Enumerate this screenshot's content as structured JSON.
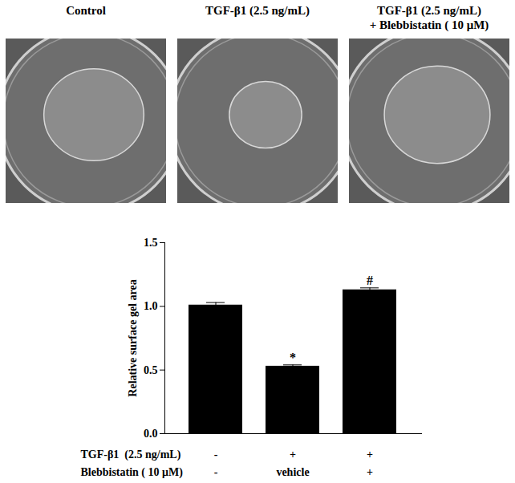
{
  "chart_data": {
    "type": "bar",
    "panels": [
      {
        "title": [
          "Control"
        ]
      },
      {
        "title": [
          "TGF-β1  (2.5 ng/mL)"
        ]
      },
      {
        "title": [
          "TGF-β1  (2.5 ng/mL)",
          "+ Blebbistatin ( 10 μM)"
        ]
      }
    ],
    "categories": [
      null,
      null,
      null
    ],
    "values": [
      1.01,
      0.53,
      1.13
    ],
    "errors": [
      0.02,
      0.01,
      0.015
    ],
    "color": "#000000",
    "y_label": "Relative surface gel area",
    "ylim": [
      0,
      1.5
    ],
    "yticks": [
      {
        "value": 0,
        "label": "0.0"
      },
      {
        "value": 0.5,
        "label": "0.5"
      },
      {
        "value": 1,
        "label": "1.0"
      },
      {
        "value": 1.5,
        "label": "1.5"
      }
    ],
    "annotations": [
      {
        "index": 1,
        "text": "*"
      },
      {
        "index": 2,
        "text": "#"
      }
    ],
    "conditions": [
      {
        "name": "TGF-β1  (2.5 ng/mL)",
        "values": [
          "-",
          "+",
          "+"
        ]
      },
      {
        "name": "Blebbistatin ( 10 μM)",
        "values": [
          "-",
          "vehicle",
          "+"
        ]
      }
    ],
    "grid": false
  }
}
